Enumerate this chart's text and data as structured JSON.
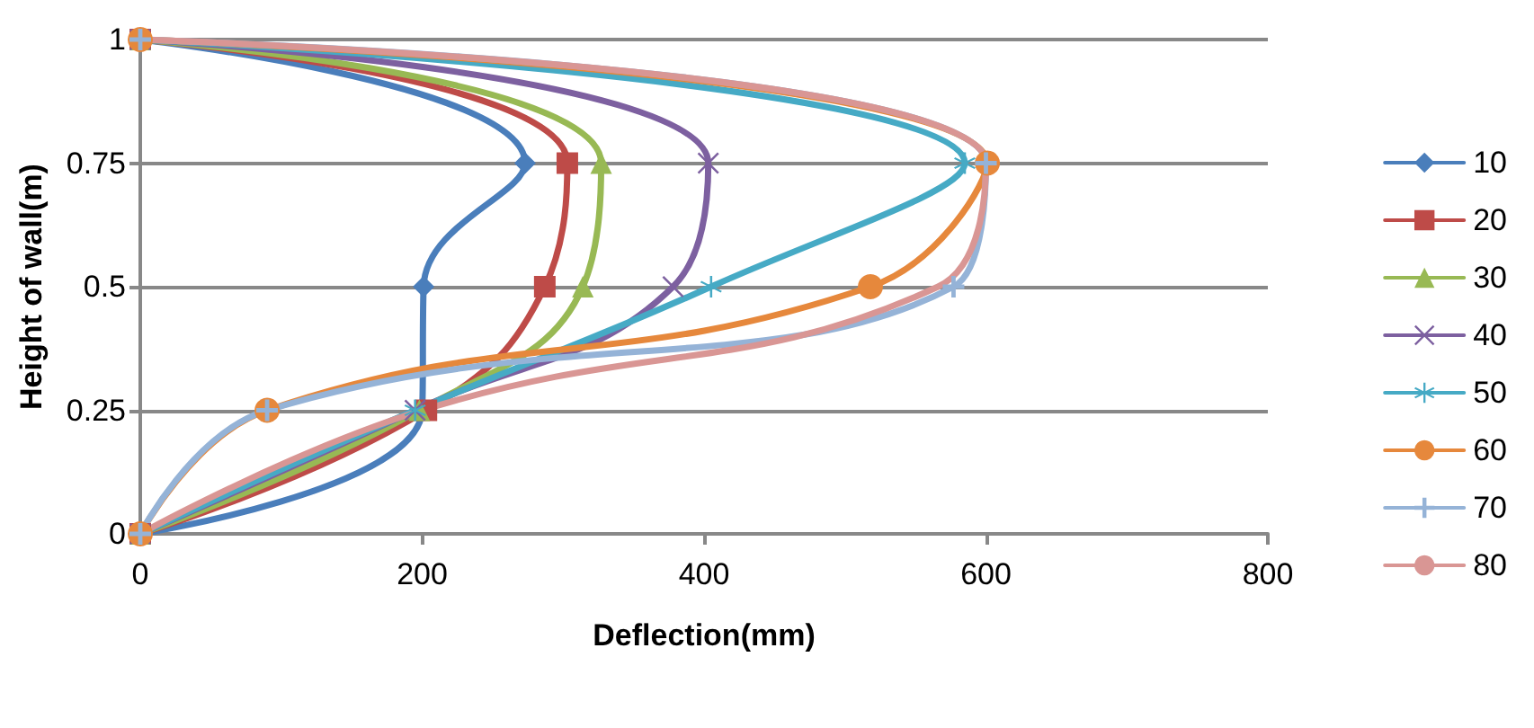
{
  "chart_data": {
    "type": "line",
    "xlabel": "Deflection(mm)",
    "ylabel": "Height of wall(m)",
    "xlim": [
      0,
      800
    ],
    "xticks": [
      0,
      200,
      400,
      600,
      800
    ],
    "ylim": [
      0,
      1
    ],
    "yticks": [
      0,
      0.25,
      0.5,
      0.75,
      1
    ],
    "grid": "y",
    "legend": "right",
    "line_style": "solid",
    "series": [
      {
        "name": "10",
        "color": "#4a7ebb",
        "marker": "diamond",
        "x": [
          0,
          200,
          201,
          273,
          0
        ],
        "values": [
          0,
          0.25,
          0.5,
          0.75,
          1
        ]
      },
      {
        "name": "20",
        "color": "#be4b48",
        "marker": "square",
        "x": [
          0,
          203,
          287,
          303,
          0
        ],
        "values": [
          0,
          0.25,
          0.5,
          0.75,
          1
        ]
      },
      {
        "name": "30",
        "color": "#98b954",
        "marker": "triangle",
        "x": [
          0,
          198,
          314,
          327,
          0
        ],
        "values": [
          0,
          0.25,
          0.5,
          0.75,
          1
        ]
      },
      {
        "name": "40",
        "color": "#7d60a0",
        "marker": "cross",
        "x": [
          0,
          195,
          378,
          403,
          0
        ],
        "values": [
          0,
          0.25,
          0.5,
          0.75,
          1
        ]
      },
      {
        "name": "50",
        "color": "#46aac5",
        "marker": "star",
        "x": [
          0,
          195,
          405,
          585,
          0
        ],
        "values": [
          0,
          0.25,
          0.5,
          0.75,
          1
        ]
      },
      {
        "name": "60",
        "color": "#e6883c",
        "marker": "circle",
        "x": [
          0,
          90,
          518,
          601,
          0
        ],
        "values": [
          0,
          0.25,
          0.5,
          0.75,
          1
        ]
      },
      {
        "name": "70",
        "color": "#95b3d7",
        "marker": "cross",
        "x": [
          0,
          90,
          577,
          600,
          0
        ],
        "values": [
          0,
          0.25,
          0.5,
          0.75,
          1
        ]
      },
      {
        "name": "80",
        "color": "#d99694",
        "marker": "none",
        "x": [
          0,
          200,
          566,
          600,
          0
        ],
        "values": [
          0,
          0.25,
          0.5,
          0.75,
          1
        ]
      }
    ]
  }
}
